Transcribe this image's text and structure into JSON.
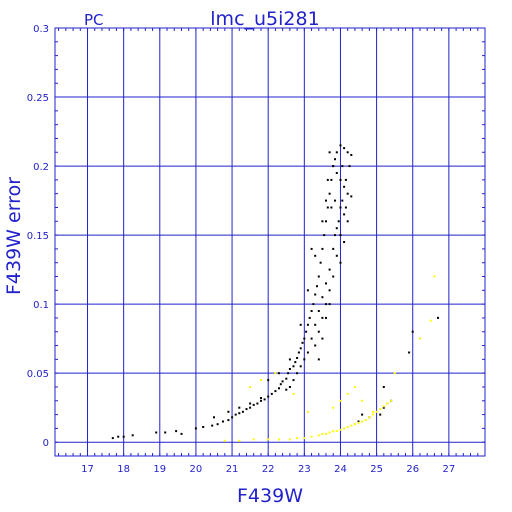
{
  "chart_data": {
    "type": "scatter",
    "title": "lmc_u5i281",
    "corner_label": "PC",
    "xlabel": "F439W",
    "ylabel": "F439W error",
    "xlim": [
      16.1,
      28.0
    ],
    "ylim": [
      -0.01,
      0.3
    ],
    "xticks": [
      17,
      18,
      19,
      20,
      21,
      22,
      23,
      24,
      25,
      26,
      27
    ],
    "yticks": [
      0,
      0.05,
      0.1,
      0.15,
      0.2,
      0.25,
      0.3
    ],
    "ytick_labels": [
      "0",
      "0.05",
      "0.1",
      "0.15",
      "0.2",
      "0.25",
      "0.3"
    ],
    "grid": true,
    "colors": {
      "axes": "#2222cc",
      "grid": "#2222cc",
      "series_1": "#000000",
      "series_2": "#ffff00"
    },
    "series": [
      {
        "color": "#000000",
        "points": [
          [
            17.7,
            0.003
          ],
          [
            17.85,
            0.004
          ],
          [
            18.0,
            0.004
          ],
          [
            18.25,
            0.005
          ],
          [
            18.9,
            0.007
          ],
          [
            19.15,
            0.007
          ],
          [
            19.45,
            0.008
          ],
          [
            19.6,
            0.006
          ],
          [
            20.0,
            0.01
          ],
          [
            20.2,
            0.011
          ],
          [
            20.45,
            0.012
          ],
          [
            20.6,
            0.013
          ],
          [
            20.75,
            0.015
          ],
          [
            20.9,
            0.016
          ],
          [
            21.0,
            0.018
          ],
          [
            21.1,
            0.02
          ],
          [
            21.2,
            0.021
          ],
          [
            21.3,
            0.022
          ],
          [
            21.4,
            0.024
          ],
          [
            21.5,
            0.025
          ],
          [
            21.6,
            0.027
          ],
          [
            21.7,
            0.028
          ],
          [
            21.8,
            0.03
          ],
          [
            21.9,
            0.031
          ],
          [
            22.0,
            0.033
          ],
          [
            22.1,
            0.035
          ],
          [
            22.2,
            0.037
          ],
          [
            22.3,
            0.039
          ],
          [
            22.35,
            0.042
          ],
          [
            22.4,
            0.044
          ],
          [
            22.5,
            0.046
          ],
          [
            22.55,
            0.05
          ],
          [
            22.6,
            0.053
          ],
          [
            22.7,
            0.055
          ],
          [
            22.75,
            0.058
          ],
          [
            22.8,
            0.061
          ],
          [
            22.85,
            0.065
          ],
          [
            22.9,
            0.068
          ],
          [
            22.95,
            0.072
          ],
          [
            23.0,
            0.075
          ],
          [
            23.05,
            0.08
          ],
          [
            23.1,
            0.085
          ],
          [
            23.15,
            0.09
          ],
          [
            23.2,
            0.095
          ],
          [
            23.25,
            0.1
          ],
          [
            23.3,
            0.107
          ],
          [
            23.35,
            0.113
          ],
          [
            23.4,
            0.12
          ],
          [
            23.45,
            0.13
          ],
          [
            23.5,
            0.14
          ],
          [
            23.55,
            0.15
          ],
          [
            23.6,
            0.16
          ],
          [
            23.65,
            0.17
          ],
          [
            23.7,
            0.18
          ],
          [
            23.75,
            0.19
          ],
          [
            23.8,
            0.2
          ],
          [
            23.85,
            0.205
          ],
          [
            23.9,
            0.21
          ],
          [
            24.0,
            0.215
          ],
          [
            24.1,
            0.213
          ],
          [
            24.2,
            0.21
          ],
          [
            24.3,
            0.208
          ],
          [
            23.7,
            0.21
          ],
          [
            23.8,
            0.2
          ],
          [
            23.9,
            0.195
          ],
          [
            24.0,
            0.19
          ],
          [
            24.1,
            0.185
          ],
          [
            24.2,
            0.18
          ],
          [
            24.3,
            0.178
          ],
          [
            24.0,
            0.17
          ],
          [
            24.1,
            0.165
          ],
          [
            24.2,
            0.16
          ],
          [
            23.9,
            0.155
          ],
          [
            24.0,
            0.15
          ],
          [
            24.1,
            0.145
          ],
          [
            23.8,
            0.14
          ],
          [
            23.9,
            0.135
          ],
          [
            24.0,
            0.13
          ],
          [
            23.7,
            0.125
          ],
          [
            23.8,
            0.12
          ],
          [
            23.6,
            0.115
          ],
          [
            23.7,
            0.11
          ],
          [
            23.5,
            0.105
          ],
          [
            23.6,
            0.1
          ],
          [
            23.4,
            0.095
          ],
          [
            23.5,
            0.09
          ],
          [
            23.3,
            0.085
          ],
          [
            23.4,
            0.08
          ],
          [
            23.2,
            0.075
          ],
          [
            23.3,
            0.07
          ],
          [
            23.1,
            0.065
          ],
          [
            23.0,
            0.06
          ],
          [
            22.9,
            0.055
          ],
          [
            22.8,
            0.05
          ],
          [
            22.7,
            0.045
          ],
          [
            22.6,
            0.04
          ],
          [
            22.5,
            0.038
          ],
          [
            21.8,
            0.032
          ],
          [
            21.5,
            0.028
          ],
          [
            21.2,
            0.025
          ],
          [
            20.9,
            0.022
          ],
          [
            20.5,
            0.018
          ],
          [
            22.0,
            0.045
          ],
          [
            22.3,
            0.05
          ],
          [
            22.6,
            0.06
          ],
          [
            22.9,
            0.085
          ],
          [
            23.1,
            0.11
          ],
          [
            23.3,
            0.135
          ],
          [
            23.5,
            0.16
          ],
          [
            23.6,
            0.175
          ],
          [
            23.65,
            0.19
          ],
          [
            23.75,
            0.17
          ],
          [
            23.85,
            0.15
          ],
          [
            24.05,
            0.2
          ],
          [
            24.15,
            0.19
          ],
          [
            24.25,
            0.2
          ],
          [
            24.05,
            0.175
          ],
          [
            23.95,
            0.16
          ],
          [
            23.85,
            0.175
          ],
          [
            24.15,
            0.17
          ],
          [
            25.1,
            0.02
          ],
          [
            25.2,
            0.025
          ],
          [
            25.3,
            0.028
          ],
          [
            25.4,
            0.03
          ],
          [
            24.8,
            0.018
          ],
          [
            24.5,
            0.015
          ],
          [
            24.6,
            0.02
          ],
          [
            25.2,
            0.04
          ],
          [
            26.0,
            0.08
          ],
          [
            26.7,
            0.09
          ],
          [
            25.9,
            0.065
          ],
          [
            23.6,
            0.09
          ],
          [
            23.4,
            0.06
          ],
          [
            23.2,
            0.14
          ],
          [
            23.7,
            0.1
          ],
          [
            23.5,
            0.075
          ]
        ]
      },
      {
        "color": "#ffff00",
        "points": [
          [
            20.8,
            0.001
          ],
          [
            21.2,
            0.001
          ],
          [
            21.6,
            0.002
          ],
          [
            22.0,
            0.002
          ],
          [
            22.3,
            0.002
          ],
          [
            22.6,
            0.002
          ],
          [
            22.8,
            0.003
          ],
          [
            23.0,
            0.003
          ],
          [
            23.2,
            0.004
          ],
          [
            23.4,
            0.005
          ],
          [
            23.5,
            0.006
          ],
          [
            23.6,
            0.006
          ],
          [
            23.7,
            0.007
          ],
          [
            23.8,
            0.008
          ],
          [
            23.9,
            0.008
          ],
          [
            24.0,
            0.009
          ],
          [
            24.1,
            0.01
          ],
          [
            24.2,
            0.011
          ],
          [
            24.3,
            0.012
          ],
          [
            24.4,
            0.013
          ],
          [
            24.5,
            0.014
          ],
          [
            24.6,
            0.015
          ],
          [
            24.7,
            0.016
          ],
          [
            24.8,
            0.018
          ],
          [
            24.9,
            0.02
          ],
          [
            25.0,
            0.022
          ],
          [
            25.1,
            0.024
          ],
          [
            25.2,
            0.026
          ],
          [
            25.3,
            0.028
          ],
          [
            25.4,
            0.03
          ],
          [
            23.8,
            0.025
          ],
          [
            24.0,
            0.03
          ],
          [
            24.2,
            0.035
          ],
          [
            24.4,
            0.04
          ],
          [
            23.1,
            0.022
          ],
          [
            21.5,
            0.04
          ],
          [
            21.8,
            0.045
          ],
          [
            22.2,
            0.05
          ],
          [
            26.6,
            0.12
          ],
          [
            26.5,
            0.088
          ],
          [
            26.2,
            0.075
          ],
          [
            25.5,
            0.05
          ],
          [
            22.7,
            0.035
          ],
          [
            24.6,
            0.03
          ],
          [
            24.9,
            0.022
          ]
        ]
      }
    ]
  }
}
